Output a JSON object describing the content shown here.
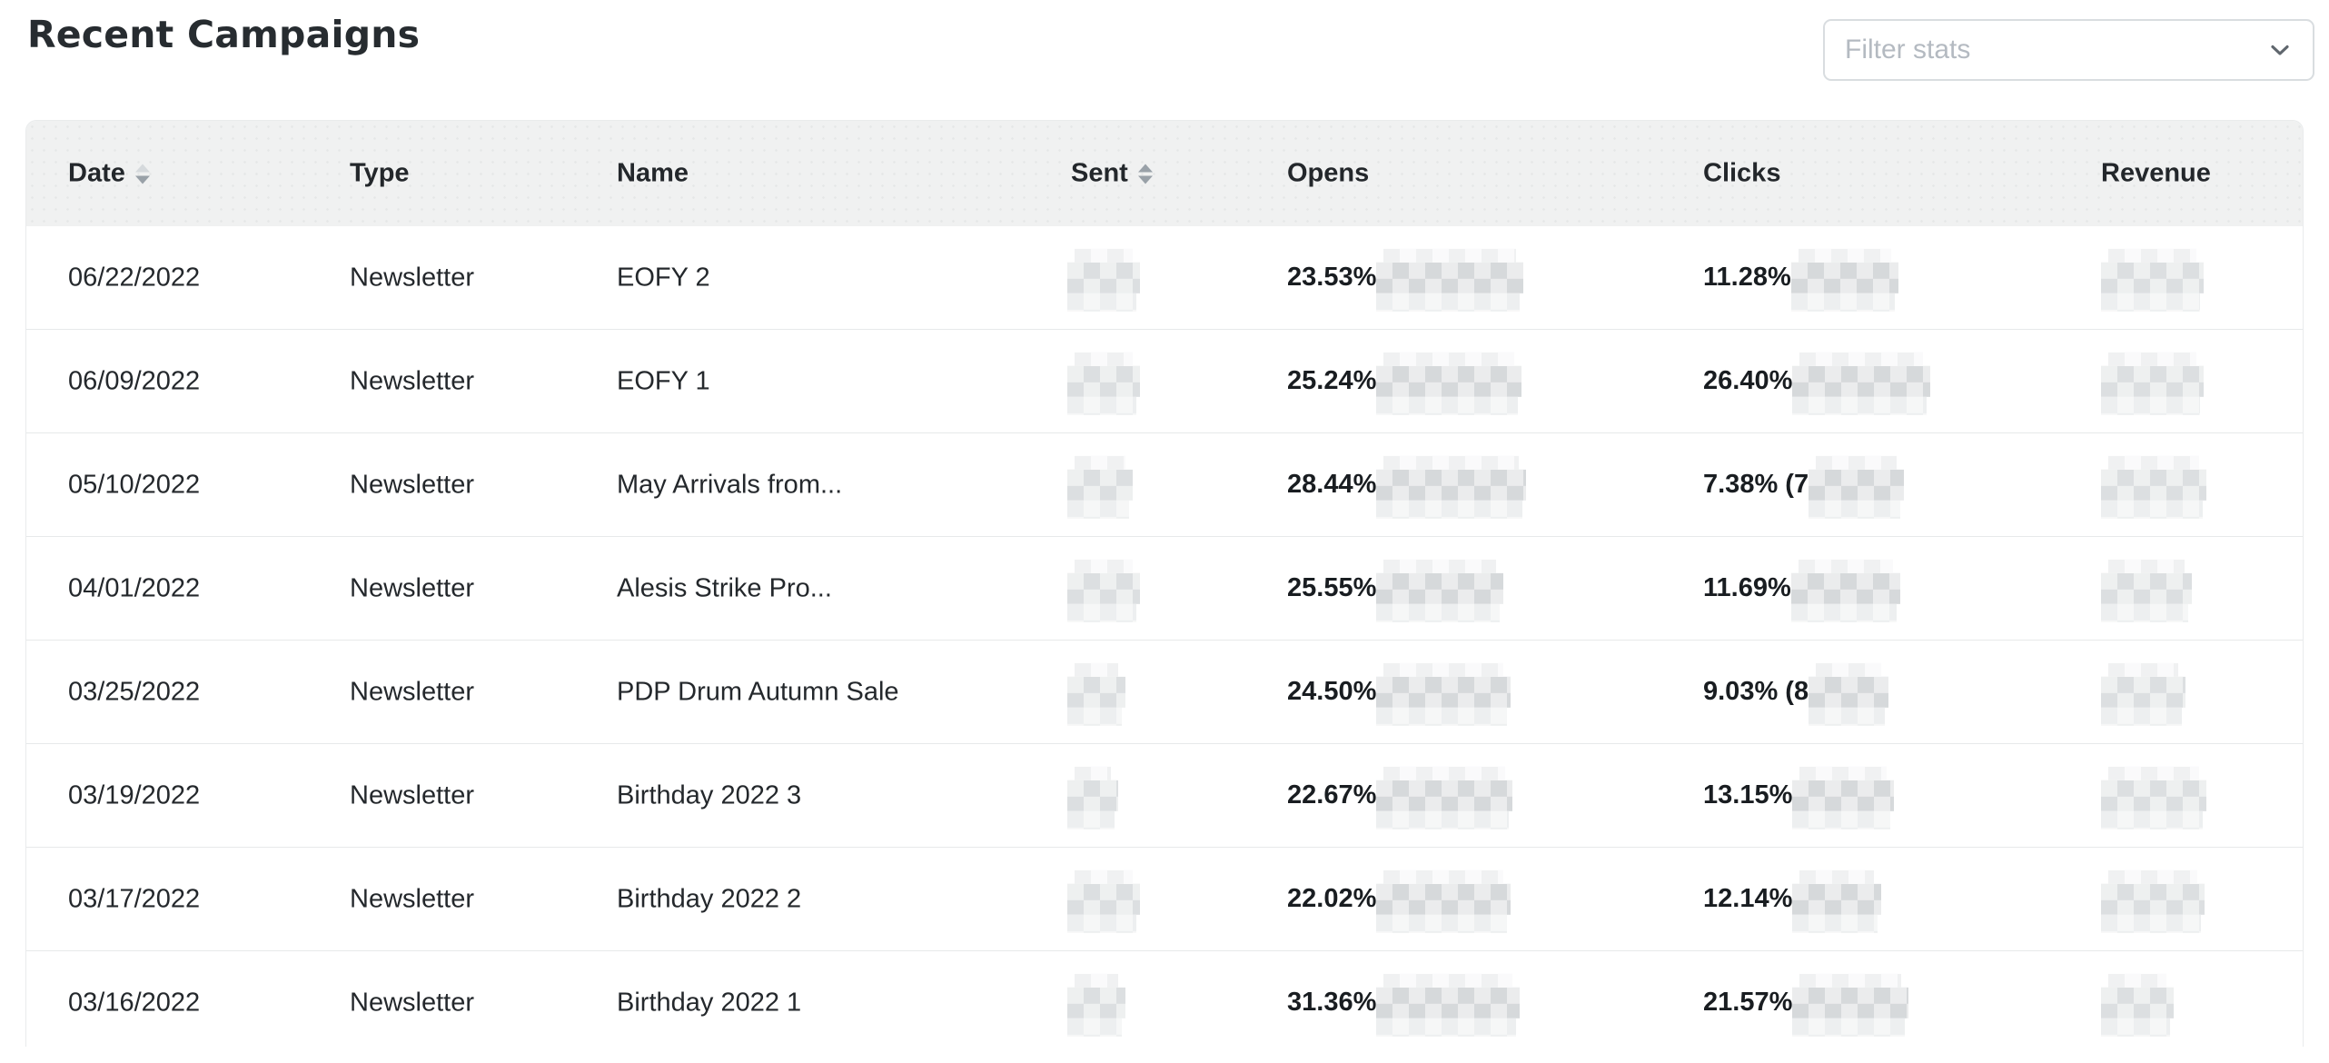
{
  "page": {
    "title": "Recent Campaigns"
  },
  "filter": {
    "placeholder": "Filter stats",
    "chevron_icon": "chevron-down",
    "border_color": "#d9dde0",
    "placeholder_color": "#b4bac1"
  },
  "colors": {
    "header_bg": "#f0f1f1",
    "divider": "#e7e9ea",
    "text": "#24282c",
    "bold_text": "#191d21"
  },
  "table": {
    "columns": [
      {
        "key": "date",
        "label": "Date",
        "sortable": true,
        "sort_icon": "sort-desc-icon"
      },
      {
        "key": "type",
        "label": "Type",
        "sortable": false
      },
      {
        "key": "name",
        "label": "Name",
        "sortable": false
      },
      {
        "key": "sent",
        "label": "Sent",
        "sortable": true,
        "sort_icon": "sort-both-icon"
      },
      {
        "key": "opens",
        "label": "Opens",
        "sortable": false
      },
      {
        "key": "clicks",
        "label": "Clicks",
        "sortable": false
      },
      {
        "key": "revenue",
        "label": "Revenue",
        "sortable": false
      }
    ],
    "rows": [
      {
        "date": "06/22/2022",
        "type": "Newsletter",
        "name": "EOFY 2",
        "opens_pct": "23.53%",
        "clicks_pct": "11.28%",
        "sent_redacted_w": 80,
        "opens_redacted_w": 162,
        "clicks_redacted_w": 118,
        "revenue_redacted_w": 113
      },
      {
        "date": "06/09/2022",
        "type": "Newsletter",
        "name": "EOFY 1",
        "opens_pct": "25.24%",
        "clicks_pct": "26.40%",
        "sent_redacted_w": 80,
        "opens_redacted_w": 160,
        "clicks_redacted_w": 152,
        "revenue_redacted_w": 113
      },
      {
        "date": "05/10/2022",
        "type": "Newsletter",
        "name": "May Arrivals from...",
        "opens_pct": "28.44%",
        "clicks_pct": "7.38% (7",
        "sent_redacted_w": 72,
        "opens_redacted_w": 165,
        "clicks_redacted_w": 105,
        "revenue_redacted_w": 116
      },
      {
        "date": "04/01/2022",
        "type": "Newsletter",
        "name": "Alesis Strike Pro...",
        "opens_pct": "25.55%",
        "clicks_pct": "11.69%",
        "sent_redacted_w": 80,
        "opens_redacted_w": 140,
        "clicks_redacted_w": 120,
        "revenue_redacted_w": 100
      },
      {
        "date": "03/25/2022",
        "type": "Newsletter",
        "name": "PDP Drum Autumn Sale",
        "opens_pct": "24.50%",
        "clicks_pct": "9.03% (8",
        "sent_redacted_w": 64,
        "opens_redacted_w": 148,
        "clicks_redacted_w": 88,
        "revenue_redacted_w": 93
      },
      {
        "date": "03/19/2022",
        "type": "Newsletter",
        "name": "Birthday 2022 3",
        "opens_pct": "22.67%",
        "clicks_pct": "13.15%",
        "sent_redacted_w": 56,
        "opens_redacted_w": 150,
        "clicks_redacted_w": 112,
        "revenue_redacted_w": 116
      },
      {
        "date": "03/17/2022",
        "type": "Newsletter",
        "name": "Birthday 2022 2",
        "opens_pct": "22.02%",
        "clicks_pct": "12.14%",
        "sent_redacted_w": 80,
        "opens_redacted_w": 148,
        "clicks_redacted_w": 98,
        "revenue_redacted_w": 114
      },
      {
        "date": "03/16/2022",
        "type": "Newsletter",
        "name": "Birthday 2022 1",
        "opens_pct": "31.36%",
        "clicks_pct": "21.57%",
        "sent_redacted_w": 64,
        "opens_redacted_w": 158,
        "clicks_redacted_w": 128,
        "revenue_redacted_w": 80
      }
    ]
  }
}
